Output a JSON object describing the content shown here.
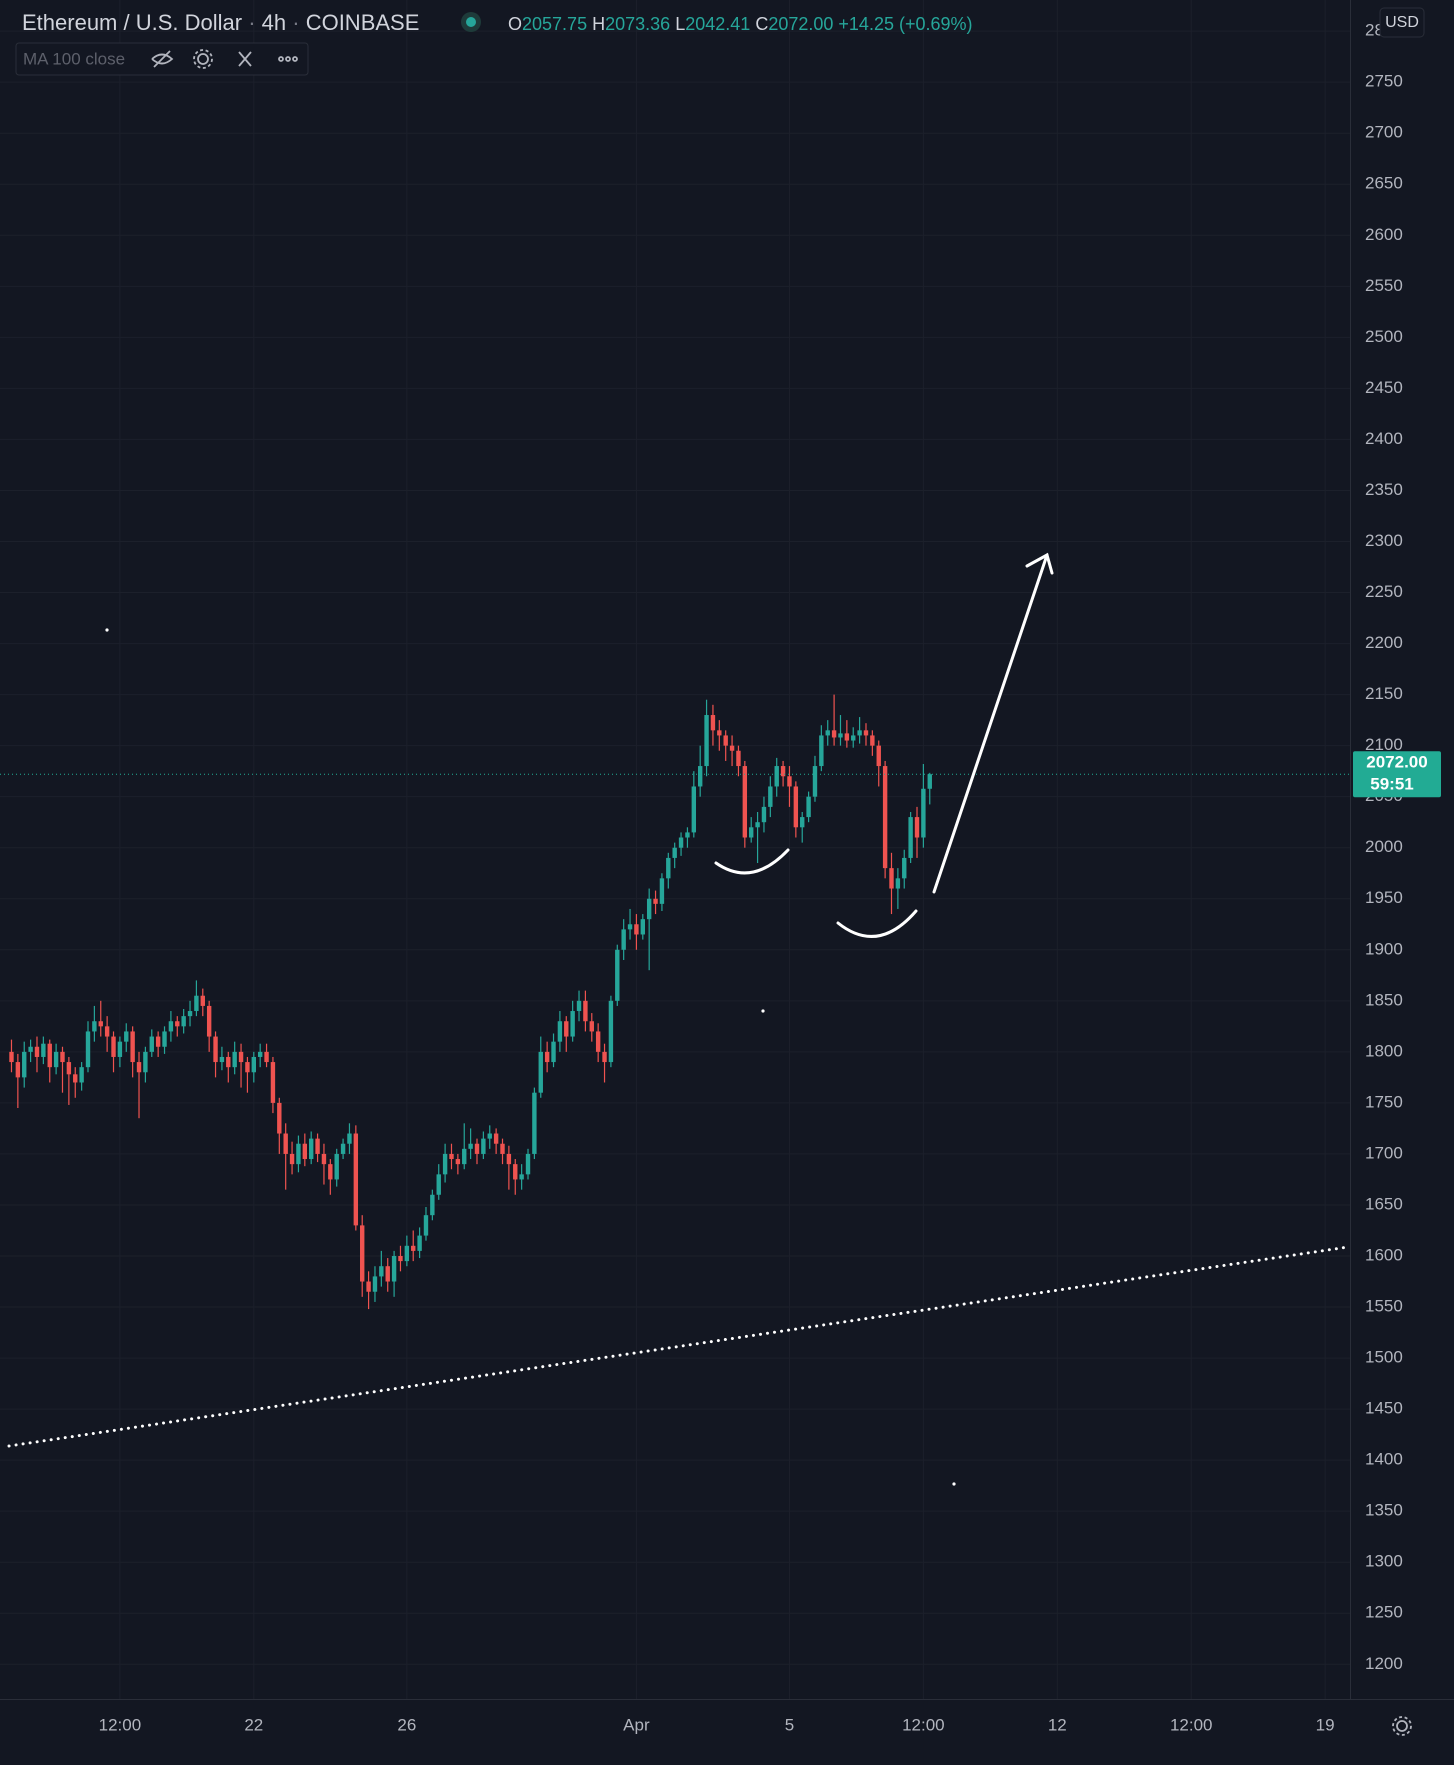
{
  "header": {
    "symbol": "Ethereum / U.S. Dollar",
    "interval": "4h",
    "exchange": "COINBASE",
    "ohlc_keys": [
      "O",
      "H",
      "L",
      "C"
    ],
    "change": "+14.25",
    "change_percent": "(+0.69%)"
  },
  "indicator": {
    "label": "MA 100 close"
  },
  "chart_data": {
    "type": "candlestick",
    "open": [
      1800,
      1790,
      1775,
      1800,
      1805,
      1795,
      1808,
      1785,
      1800,
      1790,
      1778,
      1770,
      1785,
      1820,
      1830,
      1825,
      1815,
      1795,
      1810,
      1820,
      1790,
      1780,
      1800,
      1815,
      1805,
      1820,
      1830,
      1825,
      1835,
      1840,
      1855,
      1845,
      1815,
      1790,
      1795,
      1785,
      1800,
      1790,
      1780,
      1795,
      1800,
      1790,
      1750,
      1720,
      1700,
      1690,
      1710,
      1695,
      1715,
      1700,
      1690,
      1675,
      1700,
      1710,
      1720,
      1630,
      1575,
      1565,
      1580,
      1590,
      1575,
      1600,
      1595,
      1610,
      1605,
      1620,
      1640,
      1660,
      1680,
      1700,
      1695,
      1690,
      1705,
      1710,
      1700,
      1715,
      1720,
      1710,
      1700,
      1690,
      1675,
      1680,
      1700,
      1760,
      1800,
      1790,
      1810,
      1830,
      1815,
      1840,
      1850,
      1830,
      1820,
      1800,
      1790,
      1850,
      1900,
      1920,
      1925,
      1915,
      1930,
      1950,
      1945,
      1970,
      1990,
      2000,
      2010,
      2015,
      2060,
      2080,
      2130,
      2115,
      2110,
      2100,
      2095,
      2080,
      2010,
      2020,
      2025,
      2040,
      2060,
      2080,
      2070,
      2060,
      2020,
      2030,
      2050,
      2080,
      2110,
      2115,
      2108,
      2112,
      2105,
      2110,
      2115,
      2110,
      2100,
      2080,
      1980,
      1960,
      1970,
      1990,
      2030,
      2010,
      2057.75
    ],
    "high": [
      1812,
      1798,
      1810,
      1812,
      1815,
      1815,
      1812,
      1808,
      1805,
      1795,
      1785,
      1790,
      1830,
      1845,
      1850,
      1835,
      1820,
      1815,
      1828,
      1825,
      1800,
      1805,
      1822,
      1820,
      1825,
      1840,
      1835,
      1842,
      1850,
      1870,
      1862,
      1850,
      1820,
      1805,
      1800,
      1810,
      1808,
      1795,
      1800,
      1808,
      1808,
      1795,
      1755,
      1730,
      1712,
      1718,
      1720,
      1722,
      1720,
      1710,
      1695,
      1705,
      1715,
      1730,
      1728,
      1640,
      1585,
      1590,
      1605,
      1598,
      1605,
      1610,
      1620,
      1625,
      1628,
      1648,
      1665,
      1690,
      1710,
      1710,
      1700,
      1730,
      1725,
      1715,
      1722,
      1728,
      1725,
      1715,
      1708,
      1695,
      1690,
      1705,
      1765,
      1815,
      1810,
      1818,
      1840,
      1835,
      1850,
      1860,
      1860,
      1838,
      1828,
      1808,
      1855,
      1905,
      1930,
      1940,
      1935,
      1935,
      1960,
      1958,
      1975,
      1995,
      2005,
      2015,
      2020,
      2075,
      2100,
      2145,
      2140,
      2125,
      2115,
      2110,
      2100,
      2085,
      2030,
      2035,
      2050,
      2070,
      2088,
      2085,
      2080,
      2065,
      2035,
      2055,
      2090,
      2120,
      2125,
      2150,
      2130,
      2125,
      2118,
      2128,
      2122,
      2115,
      2105,
      2085,
      1995,
      1980,
      1998,
      2035,
      2040,
      2082,
      2073.36
    ],
    "low": [
      1780,
      1745,
      1765,
      1790,
      1780,
      1788,
      1770,
      1778,
      1760,
      1748,
      1755,
      1762,
      1780,
      1810,
      1815,
      1800,
      1780,
      1785,
      1800,
      1775,
      1735,
      1770,
      1795,
      1795,
      1798,
      1810,
      1815,
      1818,
      1825,
      1835,
      1835,
      1800,
      1775,
      1782,
      1770,
      1778,
      1765,
      1760,
      1770,
      1785,
      1785,
      1740,
      1700,
      1665,
      1680,
      1682,
      1688,
      1690,
      1692,
      1670,
      1660,
      1668,
      1695,
      1700,
      1625,
      1560,
      1548,
      1555,
      1570,
      1565,
      1560,
      1585,
      1590,
      1595,
      1598,
      1615,
      1635,
      1655,
      1672,
      1685,
      1680,
      1685,
      1695,
      1690,
      1695,
      1705,
      1700,
      1690,
      1665,
      1660,
      1665,
      1675,
      1695,
      1755,
      1780,
      1785,
      1800,
      1800,
      1810,
      1830,
      1820,
      1810,
      1790,
      1770,
      1785,
      1845,
      1890,
      1910,
      1900,
      1910,
      1880,
      1935,
      1938,
      1960,
      1980,
      1992,
      2000,
      2010,
      2050,
      2070,
      2100,
      2095,
      2085,
      2080,
      2070,
      2000,
      2005,
      1985,
      2015,
      2030,
      2050,
      2060,
      2040,
      2010,
      2005,
      2025,
      2045,
      2075,
      2100,
      2100,
      2100,
      2098,
      2098,
      2102,
      2100,
      2090,
      2060,
      1970,
      1935,
      1940,
      1960,
      1985,
      1990,
      2000,
      2042.41
    ],
    "close": [
      1790,
      1775,
      1800,
      1805,
      1795,
      1808,
      1785,
      1800,
      1790,
      1778,
      1770,
      1785,
      1820,
      1830,
      1825,
      1815,
      1795,
      1810,
      1820,
      1790,
      1780,
      1800,
      1815,
      1805,
      1820,
      1830,
      1825,
      1835,
      1840,
      1855,
      1845,
      1815,
      1790,
      1795,
      1785,
      1800,
      1790,
      1780,
      1795,
      1800,
      1790,
      1750,
      1720,
      1700,
      1690,
      1710,
      1695,
      1715,
      1700,
      1690,
      1675,
      1700,
      1710,
      1720,
      1630,
      1575,
      1565,
      1580,
      1590,
      1575,
      1600,
      1595,
      1610,
      1605,
      1620,
      1640,
      1660,
      1680,
      1700,
      1695,
      1690,
      1705,
      1710,
      1700,
      1715,
      1720,
      1710,
      1700,
      1690,
      1675,
      1680,
      1700,
      1760,
      1800,
      1790,
      1810,
      1830,
      1815,
      1840,
      1850,
      1830,
      1820,
      1800,
      1790,
      1850,
      1900,
      1920,
      1925,
      1915,
      1930,
      1950,
      1945,
      1970,
      1990,
      2000,
      2010,
      2015,
      2060,
      2080,
      2130,
      2115,
      2110,
      2100,
      2095,
      2080,
      2010,
      2020,
      2025,
      2040,
      2060,
      2080,
      2070,
      2060,
      2020,
      2030,
      2050,
      2080,
      2110,
      2115,
      2108,
      2112,
      2105,
      2110,
      2115,
      2110,
      2100,
      2080,
      1980,
      1960,
      1970,
      1990,
      2030,
      2010,
      2057.75,
      2072
    ],
    "colors": {
      "up": "#26a69a",
      "down": "#ef5350"
    },
    "xlim": [
      -1.8,
      209.9
    ],
    "xticks": [
      {
        "value": 17,
        "label": "12:00"
      },
      {
        "value": 38,
        "label": "22"
      },
      {
        "value": 62,
        "label": "26"
      },
      {
        "value": 98,
        "label": "Apr"
      },
      {
        "value": 122,
        "label": "5"
      },
      {
        "value": 143,
        "label": "12:00"
      },
      {
        "value": 164,
        "label": "12"
      },
      {
        "value": 185,
        "label": "12:00"
      },
      {
        "value": 206,
        "label": "19"
      }
    ],
    "ylim": [
      1166,
      2830.5
    ],
    "yticks": [
      1200,
      1250,
      1300,
      1350,
      1400,
      1450,
      1500,
      1550,
      1600,
      1650,
      1700,
      1750,
      1800,
      1850,
      1900,
      1950,
      2000,
      2050,
      2100,
      2150,
      2200,
      2250,
      2300,
      2350,
      2400,
      2450,
      2500,
      2550,
      2600,
      2650,
      2700,
      2750,
      2800
    ],
    "currency": "USD",
    "grid": true,
    "price_line": {
      "value": 2072,
      "label": "2072.00",
      "countdown": "59:51",
      "color": "#22ab94"
    }
  }
}
